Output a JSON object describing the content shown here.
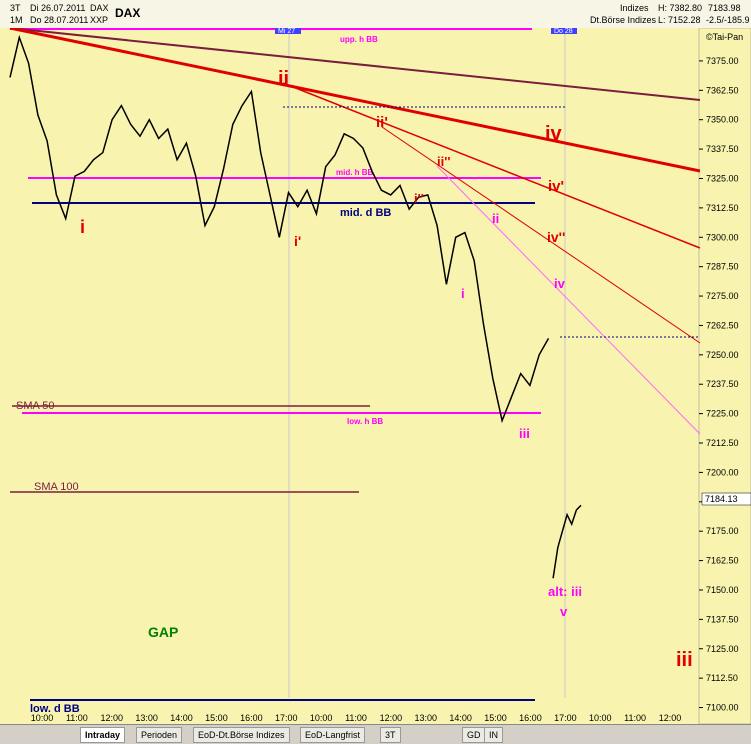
{
  "header": {
    "row1_period": "3T",
    "row1_date": "Di 26.07.2011",
    "row1_symbol": "DAX",
    "row2_period": "1M",
    "row2_date": "Do 28.07.2011",
    "row2_symbol": "XXP",
    "instrument": "DAX",
    "category": "Indizes",
    "exchange": "Dt.Börse Indizes",
    "high": "H: 7382.80",
    "low": "L: 7152.28",
    "last": "7183.98",
    "change": "-2.5/-185.9",
    "vendor": "©Tai-Pan"
  },
  "tabs": {
    "intraday": "Intraday",
    "perioden": "Perioden",
    "eod_boerse": "EoD-Dt.Börse Indizes",
    "eod_lang": "EoD-Langfrist",
    "period_sel": "3T",
    "gd": "GD",
    "in": "IN"
  },
  "colors": {
    "plot_bg": "#f8f4b0",
    "price": "#000000",
    "red_wave": "#e00000",
    "magenta": "#ff00ff",
    "navy": "#000080",
    "maroon": "#7a1e3c",
    "green": "#008000"
  },
  "chart_data": {
    "type": "line",
    "title": "DAX",
    "y_axis_ticks": [
      "7375.00",
      "7362.50",
      "7350.00",
      "7337.50",
      "7325.00",
      "7312.50",
      "7300.00",
      "7287.50",
      "7275.00",
      "7262.50",
      "7250.00",
      "7237.50",
      "7225.00",
      "7212.50",
      "7200.00",
      "7187.50",
      "7175.00",
      "7162.50",
      "7150.00",
      "7137.50",
      "7125.00",
      "7112.50",
      "7100.00"
    ],
    "x_axis_ticks": [
      "10:00",
      "11:00",
      "12:00",
      "13:00",
      "14:00",
      "15:00",
      "16:00",
      "17:00",
      "10:00",
      "11:00",
      "12:00",
      "13:00",
      "14:00",
      "15:00",
      "16:00",
      "17:00",
      "10:00",
      "11:00",
      "12:00"
    ],
    "last_price_label": "7184.13",
    "ylim": [
      7093,
      7389
    ],
    "series": [
      {
        "x": [
          0,
          2,
          4,
          6,
          8,
          10,
          12,
          14,
          16,
          18,
          20,
          22,
          24,
          26,
          28,
          30,
          32,
          34,
          36,
          38,
          40,
          42,
          44,
          46,
          48,
          50,
          52,
          54,
          56,
          58,
          60,
          62,
          64,
          66,
          68,
          70,
          72,
          74,
          76,
          78,
          80,
          82,
          84,
          86,
          88,
          90,
          92,
          94,
          96,
          98,
          100,
          102,
          104,
          106,
          108,
          110,
          112,
          114,
          116
        ],
        "y": [
          7368,
          7385,
          7374,
          7352,
          7341,
          7318,
          7308,
          7326,
          7328,
          7333,
          7336,
          7350,
          7356,
          7348,
          7343,
          7350,
          7342,
          7346,
          7333,
          7340,
          7326,
          7305,
          7313,
          7329,
          7348,
          7356,
          7362,
          7336,
          7318,
          7300,
          7319,
          7313,
          7320,
          7310,
          7330,
          7335,
          7344,
          7342,
          7338,
          7328,
          7320,
          7318,
          7322,
          7312,
          7317,
          7318,
          7305,
          7280,
          7300,
          7302,
          7290,
          7263,
          7240,
          7222,
          7232,
          7242,
          7237,
          7250,
          7257
        ]
      },
      {
        "x": [
          117,
          118,
          119,
          120,
          121,
          122,
          123
        ],
        "y": [
          7155,
          7168,
          7175,
          7182,
          7178,
          7184,
          7186
        ]
      }
    ],
    "annotations": {
      "upp_bb": "upp. h BB",
      "mid_bb_h": "mid. h BB",
      "mid_bb_d": "mid. d BB",
      "low_bb_h": "low. h BB",
      "low_bb_d": "low. d BB",
      "sma50": "SMA 50",
      "sma100": "SMA 100",
      "gap": "GAP",
      "marker_27": "Mi 27",
      "marker_28": "Do 28",
      "wave_i_red": "i",
      "wave_ii_red": "ii",
      "wave_iv_big": "iv",
      "wave_iv_prime": "iv'",
      "wave_iv_dprime": "iv''",
      "wave_i_prime": "i'",
      "wave_ii_prime": "ii'",
      "wave_i_dprime": "i''",
      "wave_ii_dprime": "ii''",
      "wave_i_mag": "i",
      "wave_ii_mag": "ii",
      "wave_iv_mag": "iv",
      "wave_iii_mag": "iii",
      "alt_iii": "alt: iii",
      "wave_v": "v",
      "wave_iii_red": "iii"
    }
  }
}
